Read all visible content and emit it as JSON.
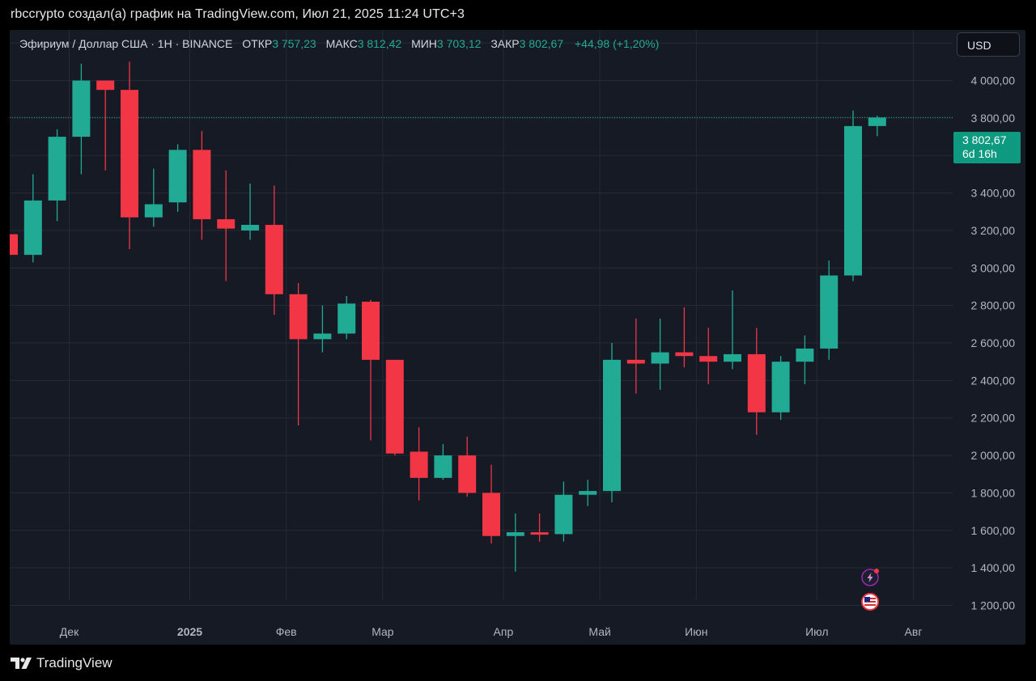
{
  "header": {
    "caption": "rbccrypto создал(а) график на TradingView.com, Июл 21, 2025 11:24 UTC+3"
  },
  "legend": {
    "symbol": "Эфириум / Доллар США · 1Н · BINANCE",
    "open_label": "ОТКР",
    "open_value": "3 757,23",
    "high_label": "МАКС",
    "high_value": "3 812,42",
    "low_label": "МИН",
    "low_value": "3 703,12",
    "close_label": "ЗАКР",
    "close_value": "3 802,67",
    "change": "+44,98 (+1,20%)"
  },
  "currency_button": {
    "label": "USD"
  },
  "price_badge": {
    "price": "3 802,67",
    "countdown": "6d 16h"
  },
  "footer": {
    "brand": "TradingView"
  },
  "icons": [
    "lightning-icon",
    "us-flag-icon",
    "tradingview-logo-icon"
  ],
  "colors": {
    "background": "#161a25",
    "grid": "#262a35",
    "up": "#22ab94",
    "down": "#f23645",
    "text": "#b2b5be"
  },
  "chart_data": {
    "type": "candlestick",
    "title": "Эфириум / Доллар США · 1Н · BINANCE",
    "xlabel": "",
    "ylabel": "",
    "ylim": [
      1120,
      4270
    ],
    "y_ticks": [
      1200,
      1400,
      1600,
      1800,
      2000,
      2200,
      2400,
      2600,
      2800,
      3000,
      3200,
      3400,
      3600,
      3800,
      4000,
      4200
    ],
    "y_tick_labels": [
      "1 200,00",
      "1 400,00",
      "1 600,00",
      "1 800,00",
      "2 000,00",
      "2 200,00",
      "2 400,00",
      "2 600,00",
      "2 800,00",
      "3 000,00",
      "3 200,00",
      "3 400,00",
      "3 600,00",
      "3 800,00",
      "4 000,00",
      "4 200,00"
    ],
    "x_ticks": [
      {
        "label": "Дек",
        "index": 2.5,
        "bold": false
      },
      {
        "label": "2025",
        "index": 7.5,
        "bold": true
      },
      {
        "label": "Фев",
        "index": 11.5,
        "bold": false
      },
      {
        "label": "Мар",
        "index": 15.5,
        "bold": false
      },
      {
        "label": "Апр",
        "index": 20.5,
        "bold": false
      },
      {
        "label": "Май",
        "index": 24.5,
        "bold": false
      },
      {
        "label": "Июн",
        "index": 28.5,
        "bold": false
      },
      {
        "label": "Июл",
        "index": 33.5,
        "bold": false
      },
      {
        "label": "Авг",
        "index": 37.5,
        "bold": false
      }
    ],
    "grid": true,
    "last_price": 3802.67,
    "candles": [
      {
        "o": 3180,
        "h": 3180,
        "l": 3070,
        "c": 3070
      },
      {
        "o": 3070,
        "h": 3500,
        "l": 3030,
        "c": 3360
      },
      {
        "o": 3360,
        "h": 3740,
        "l": 3250,
        "c": 3700
      },
      {
        "o": 3700,
        "h": 4090,
        "l": 3500,
        "c": 4000
      },
      {
        "o": 4000,
        "h": 4000,
        "l": 3520,
        "c": 3950
      },
      {
        "o": 3950,
        "h": 4100,
        "l": 3100,
        "c": 3270
      },
      {
        "o": 3270,
        "h": 3530,
        "l": 3220,
        "c": 3340
      },
      {
        "o": 3350,
        "h": 3660,
        "l": 3300,
        "c": 3630
      },
      {
        "o": 3630,
        "h": 3730,
        "l": 3150,
        "c": 3260
      },
      {
        "o": 3260,
        "h": 3520,
        "l": 2930,
        "c": 3210
      },
      {
        "o": 3200,
        "h": 3450,
        "l": 3150,
        "c": 3230
      },
      {
        "o": 3230,
        "h": 3440,
        "l": 2750,
        "c": 2860
      },
      {
        "o": 2860,
        "h": 2920,
        "l": 2160,
        "c": 2620
      },
      {
        "o": 2620,
        "h": 2800,
        "l": 2550,
        "c": 2650
      },
      {
        "o": 2650,
        "h": 2850,
        "l": 2620,
        "c": 2810
      },
      {
        "o": 2820,
        "h": 2830,
        "l": 2080,
        "c": 2510
      },
      {
        "o": 2510,
        "h": 2510,
        "l": 2000,
        "c": 2010
      },
      {
        "o": 2020,
        "h": 2150,
        "l": 1760,
        "c": 1880
      },
      {
        "o": 1880,
        "h": 2060,
        "l": 1870,
        "c": 2000
      },
      {
        "o": 2000,
        "h": 2100,
        "l": 1780,
        "c": 1800
      },
      {
        "o": 1800,
        "h": 1950,
        "l": 1530,
        "c": 1570
      },
      {
        "o": 1570,
        "h": 1690,
        "l": 1380,
        "c": 1590
      },
      {
        "o": 1590,
        "h": 1690,
        "l": 1540,
        "c": 1580
      },
      {
        "o": 1580,
        "h": 1860,
        "l": 1540,
        "c": 1790
      },
      {
        "o": 1790,
        "h": 1870,
        "l": 1730,
        "c": 1810
      },
      {
        "o": 1810,
        "h": 2600,
        "l": 1750,
        "c": 2510
      },
      {
        "o": 2510,
        "h": 2730,
        "l": 2330,
        "c": 2490
      },
      {
        "o": 2490,
        "h": 2730,
        "l": 2350,
        "c": 2550
      },
      {
        "o": 2550,
        "h": 2790,
        "l": 2470,
        "c": 2530
      },
      {
        "o": 2530,
        "h": 2680,
        "l": 2380,
        "c": 2500
      },
      {
        "o": 2500,
        "h": 2880,
        "l": 2460,
        "c": 2540
      },
      {
        "o": 2540,
        "h": 2680,
        "l": 2110,
        "c": 2230
      },
      {
        "o": 2230,
        "h": 2530,
        "l": 2190,
        "c": 2500
      },
      {
        "o": 2500,
        "h": 2640,
        "l": 2380,
        "c": 2570
      },
      {
        "o": 2570,
        "h": 3040,
        "l": 2510,
        "c": 2960
      },
      {
        "o": 2960,
        "h": 3840,
        "l": 2930,
        "c": 3757
      },
      {
        "o": 3757.23,
        "h": 3812.42,
        "l": 3703.12,
        "c": 3802.67
      }
    ]
  }
}
